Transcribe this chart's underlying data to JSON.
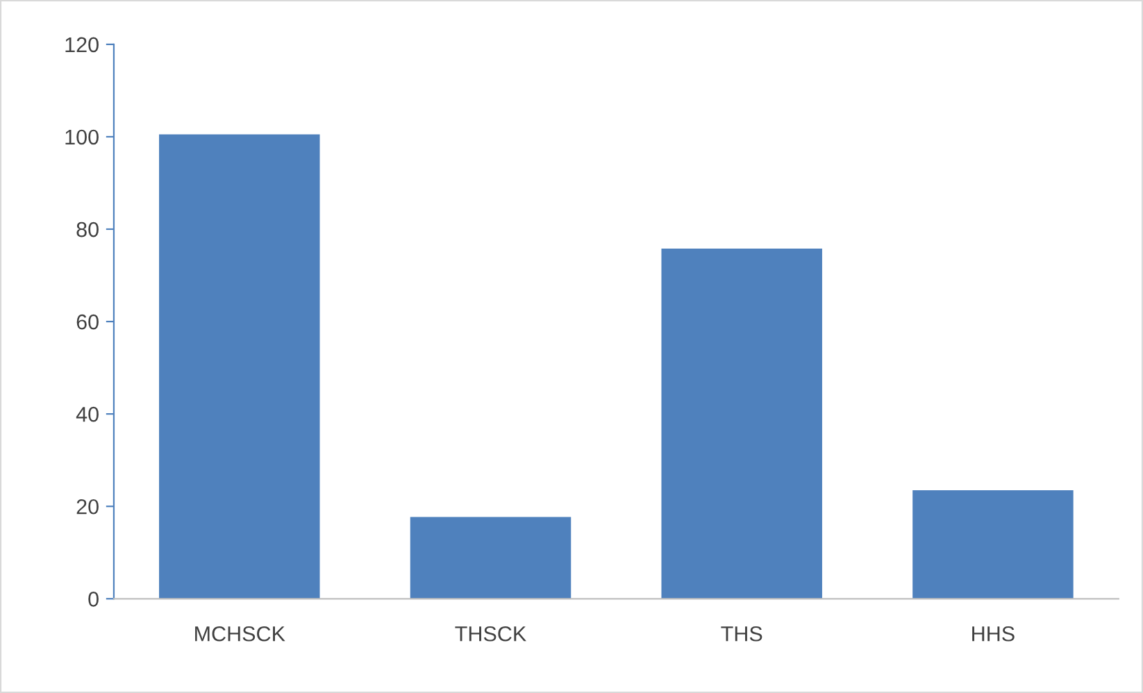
{
  "chart_data": {
    "type": "bar",
    "categories": [
      "MCHSCK",
      "THSCK",
      "THS",
      "HHS"
    ],
    "values": [
      100.5,
      17.7,
      75.8,
      23.5
    ],
    "color": "#4f81bd",
    "ylim": [
      0,
      120
    ],
    "yticks": [
      0,
      20,
      40,
      60,
      80,
      100,
      120
    ],
    "grid": false
  }
}
